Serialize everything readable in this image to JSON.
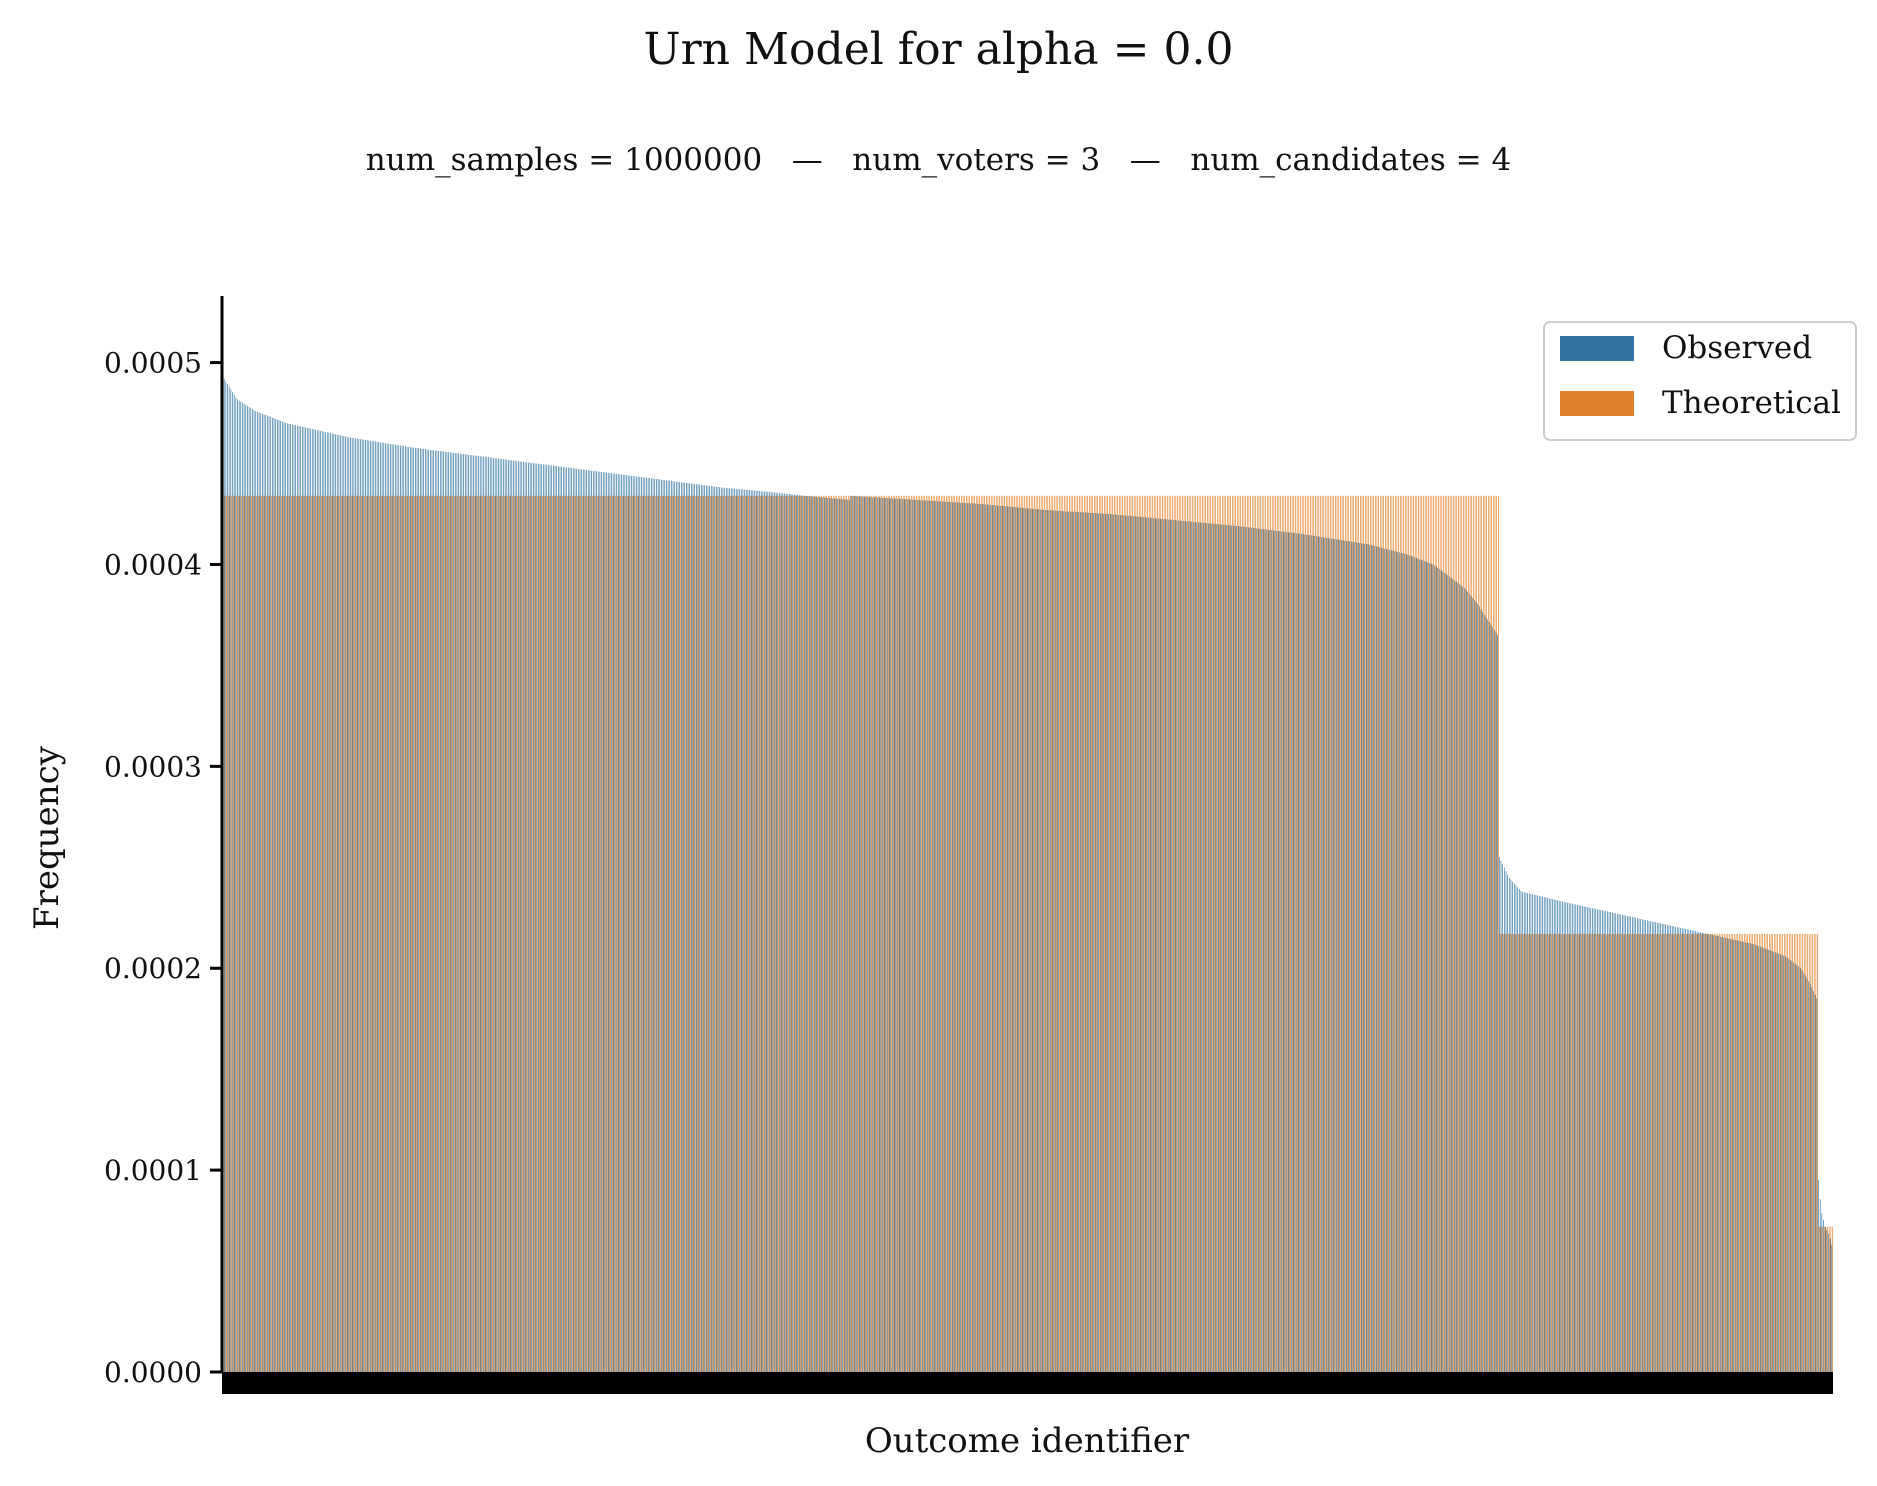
{
  "chart_data": {
    "type": "bar",
    "title": "Urn Model for alpha = 0.0",
    "subtitle": "num_samples = 1000000   —   num_voters = 3   —   num_candidates = 4",
    "xlabel": "Outcome identifier",
    "ylabel": "Frequency",
    "ylim": [
      0,
      0.000532
    ],
    "yticks": [
      "0.0000",
      "0.0001",
      "0.0002",
      "0.0003",
      "0.0004",
      "0.0005"
    ],
    "ytick_values": [
      0.0,
      0.0001,
      0.0002,
      0.0003,
      0.0004,
      0.0005
    ],
    "xticks_hidden": true,
    "grid": false,
    "legend": {
      "placement": "top-right",
      "entries": [
        "Observed",
        "Theoretical"
      ]
    },
    "colors": {
      "Observed": "#3274a1",
      "Theoretical": "#e1812c"
    },
    "series": [
      {
        "name": "Observed",
        "segments": [
          {
            "count": 1,
            "values": [
              0.0005
            ]
          },
          {
            "count": 377,
            "keypoints": [
              [
                0.0,
                0.000492
              ],
              [
                0.02,
                0.000482
              ],
              [
                0.05,
                0.000476
              ],
              [
                0.1,
                0.00047
              ],
              [
                0.2,
                0.000463
              ],
              [
                0.3,
                0.000458
              ],
              [
                0.4,
                0.000454
              ],
              [
                0.5,
                0.00045
              ],
              [
                0.6,
                0.000446
              ],
              [
                0.7,
                0.000442
              ],
              [
                0.8,
                0.000438
              ],
              [
                0.87,
                0.000436
              ],
              [
                0.93,
                0.000434
              ],
              [
                1.0,
                0.000432
              ]
            ]
          },
          {
            "count": 390,
            "keypoints": [
              [
                0.0,
                0.000434
              ],
              [
                0.1,
                0.000432
              ],
              [
                0.2,
                0.00043
              ],
              [
                0.3,
                0.000427
              ],
              [
                0.4,
                0.000425
              ],
              [
                0.5,
                0.000422
              ],
              [
                0.6,
                0.000419
              ],
              [
                0.7,
                0.000415
              ],
              [
                0.8,
                0.00041
              ],
              [
                0.86,
                0.000405
              ],
              [
                0.9,
                0.0004
              ],
              [
                0.93,
                0.000393
              ],
              [
                0.95,
                0.000388
              ],
              [
                0.97,
                0.00038
              ],
              [
                0.99,
                0.00037
              ],
              [
                1.0,
                0.000365
              ]
            ]
          },
          {
            "count": 192,
            "keypoints": [
              [
                0.0,
                0.000255
              ],
              [
                0.03,
                0.000245
              ],
              [
                0.07,
                0.000238
              ],
              [
                0.2,
                0.000233
              ],
              [
                0.4,
                0.000226
              ],
              [
                0.6,
                0.000219
              ],
              [
                0.8,
                0.000212
              ],
              [
                0.9,
                0.000206
              ],
              [
                0.95,
                0.0002
              ],
              [
                0.98,
                0.000192
              ],
              [
                1.0,
                0.000185
              ]
            ]
          },
          {
            "count": 9,
            "keypoints": [
              [
                0.0,
                9.5e-05
              ],
              [
                0.2,
                8e-05
              ],
              [
                0.5,
                7.2e-05
              ],
              [
                0.8,
                6.8e-05
              ],
              [
                1.0,
                6.3e-05
              ]
            ]
          }
        ]
      },
      {
        "name": "Theoretical",
        "segments": [
          {
            "count": 768,
            "value": 0.000434
          },
          {
            "count": 192,
            "value": 0.000217
          },
          {
            "count": 9,
            "value": 7.2e-05
          }
        ]
      }
    ]
  }
}
